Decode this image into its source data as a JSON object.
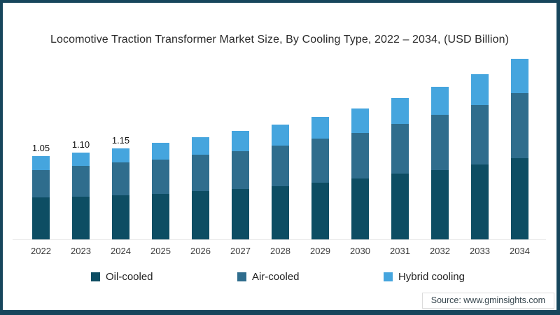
{
  "chart_data": {
    "type": "bar",
    "stacked": true,
    "title": "Locomotive Traction Transformer Market Size, By Cooling Type, 2022 – 2034, (USD Billion)",
    "unit": "USD Billion",
    "categories": [
      "2022",
      "2023",
      "2024",
      "2025",
      "2026",
      "2027",
      "2028",
      "2029",
      "2030",
      "2031",
      "2032",
      "2033",
      "2034"
    ],
    "series": [
      {
        "name": "Oil-cooled",
        "color": "#0d4d63",
        "values": [
          0.53,
          0.54,
          0.56,
          0.58,
          0.61,
          0.64,
          0.67,
          0.72,
          0.77,
          0.83,
          0.88,
          0.95,
          1.03
        ]
      },
      {
        "name": "Air-cooled",
        "color": "#2f6d8d",
        "values": [
          0.35,
          0.39,
          0.41,
          0.43,
          0.46,
          0.48,
          0.52,
          0.55,
          0.58,
          0.63,
          0.7,
          0.75,
          0.82
        ]
      },
      {
        "name": "Hybrid cooling",
        "color": "#45a5de",
        "values": [
          0.17,
          0.17,
          0.18,
          0.21,
          0.22,
          0.25,
          0.26,
          0.28,
          0.31,
          0.33,
          0.35,
          0.39,
          0.43
        ]
      }
    ],
    "totals": [
      1.05,
      1.1,
      1.15,
      1.22,
      1.29,
      1.37,
      1.45,
      1.55,
      1.66,
      1.79,
      1.93,
      2.09,
      2.28
    ],
    "data_labels": [
      "1.05",
      "1.10",
      "1.15",
      "",
      "",
      "",
      "",
      "",
      "",
      "",
      "",
      "",
      ""
    ],
    "legend_position": "bottom",
    "grid": false,
    "ylim": [
      0,
      2.4
    ]
  },
  "source": {
    "label": "Source: www.gminsights.com"
  },
  "colors": {
    "frame_border": "#17465c",
    "axis_line": "#e7e7e7",
    "title_text": "#2b2b2b"
  }
}
